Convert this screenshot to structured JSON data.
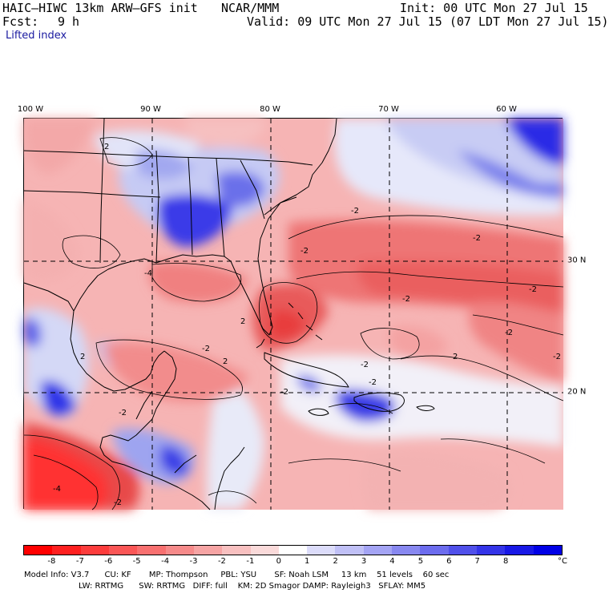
{
  "header": {
    "model_title": "HAIC–HIWC 13km ARW–GFS init",
    "org": "NCAR/MMM",
    "init": "Init: 00 UTC Mon 27 Jul 15",
    "fcst_label": "Fcst:",
    "fcst_value": "9 h",
    "valid": "Valid: 09 UTC Mon 27 Jul 15 (07 LDT Mon 27 Jul 15)",
    "field": "Lifted index"
  },
  "map": {
    "longitude_labels": [
      "100 W",
      "90 W",
      "80 W",
      "70 W",
      "60 W"
    ],
    "latitude_labels": [
      "30 N",
      "20 N"
    ],
    "contour_labels": [
      "2",
      "-2",
      "-2",
      "-2",
      "2",
      "-2",
      "-2",
      "-2",
      "-2",
      "-2",
      "-4",
      "-2",
      "2",
      "2",
      "-2",
      "-4",
      "-2",
      "2",
      "-2",
      "-2"
    ],
    "colors": {
      "very_stable": "#2a2ae6",
      "stable": "#9aa0ee",
      "neutral": "#eef0fa",
      "unstable_light": "#f7c4c4",
      "unstable": "#f08c8c",
      "unstable_strong": "#e84a4a",
      "coast": "#000000"
    }
  },
  "colorbar": {
    "labels": [
      "-8",
      "-7",
      "-6",
      "-5",
      "-4",
      "-3",
      "-2",
      "-1",
      "0",
      "1",
      "2",
      "3",
      "4",
      "5",
      "6",
      "7",
      "8"
    ],
    "unit": "°C",
    "colors": [
      "#ff0000",
      "#fe2020",
      "#fc3c3c",
      "#fa5656",
      "#f87070",
      "#f68a8a",
      "#f6a4a4",
      "#f8c0c0",
      "#fadada",
      "#ffffff",
      "#dcdcfa",
      "#c0c0f6",
      "#a4a4f4",
      "#8888f0",
      "#6c6cee",
      "#5050ea",
      "#3434e8",
      "#1818e6",
      "#0000e6"
    ]
  },
  "footer": {
    "line1": "Model Info: V3.7      CU: KF       MP: Thompson     PBL: YSU       SF: Noah LSM     13 km    51 levels    60 sec",
    "line2": "LW: RRTMG      SW: RRTMG   DIFF: full    KM: 2D Smagor DAMP: Rayleigh3   SFLAY: MM5"
  }
}
